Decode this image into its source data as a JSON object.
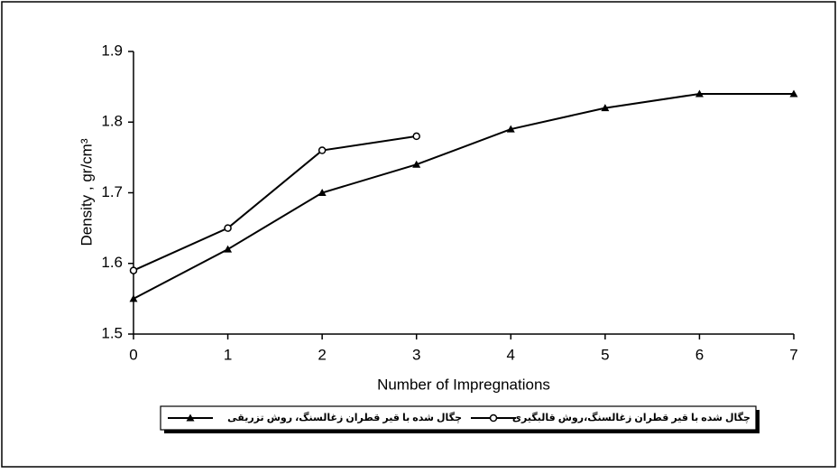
{
  "chart_data": {
    "type": "line",
    "x_label": "Number of Impregnations",
    "y_label": "Density , gr/cm³",
    "x": [
      0,
      1,
      2,
      3,
      4,
      5,
      6,
      7
    ],
    "series": [
      {
        "name": "چگال شده با قیر قطران زغالسنگ، روش تزریقی",
        "color": "#000000",
        "marker": "triangle",
        "values": [
          1.55,
          1.62,
          1.7,
          1.74,
          1.79,
          1.82,
          1.84,
          1.84
        ]
      },
      {
        "name": "چگال شده با قیر قطران زغالسنگ،روش قالبگیری",
        "color": "#000000",
        "marker": "circle",
        "values": [
          1.59,
          1.65,
          1.76,
          1.78,
          null,
          null,
          null,
          null
        ]
      }
    ],
    "xlim": [
      0,
      7
    ],
    "xticks": [
      0,
      1,
      2,
      3,
      4,
      5,
      6,
      7
    ],
    "ylim": [
      1.5,
      1.9
    ],
    "yticks": [
      1.5,
      1.6,
      1.7,
      1.8,
      1.9
    ],
    "grid": false,
    "legend": "bottom"
  }
}
